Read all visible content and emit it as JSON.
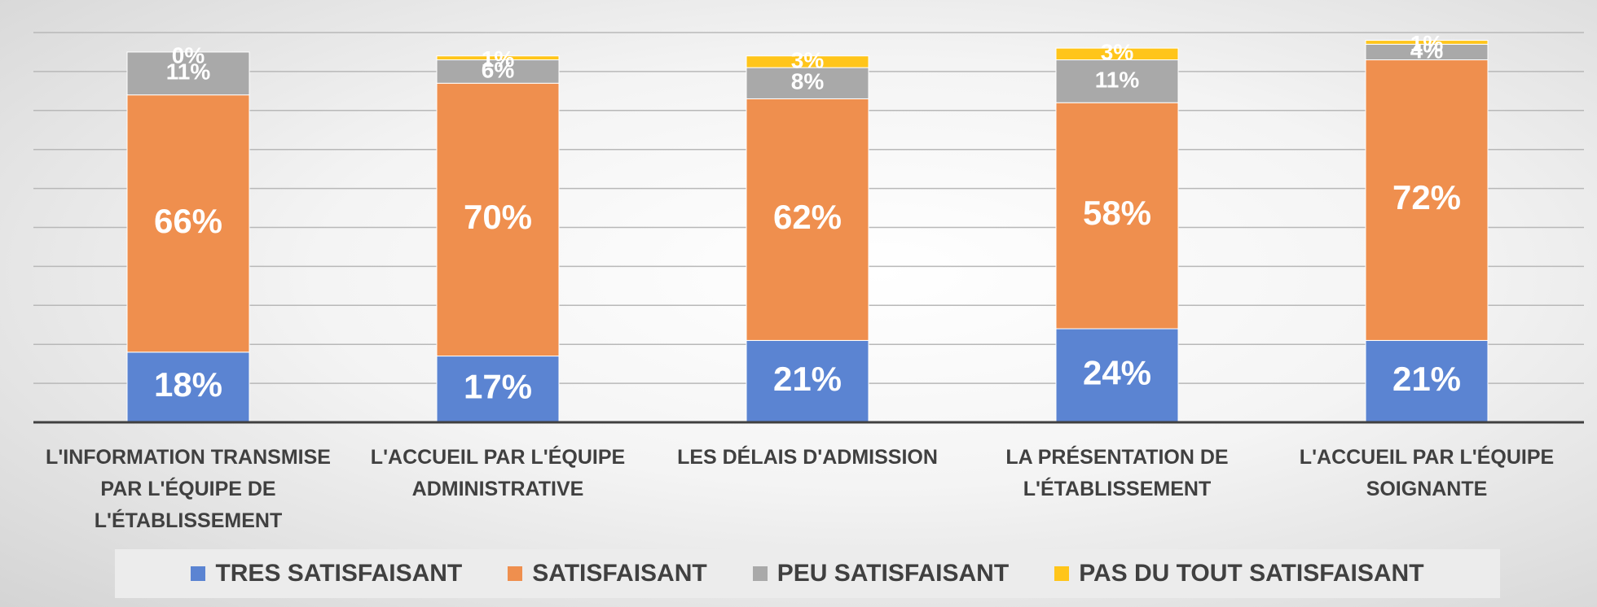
{
  "chart_data": {
    "type": "stacked_bar",
    "categories": [
      "L'INFORMATION TRANSMISE PAR L'ÉQUIPE DE L'ÉTABLISSEMENT",
      "L'ACCUEIL PAR L'ÉQUIPE ADMINISTRATIVE",
      "LES DÉLAIS D'ADMISSION",
      "LA PRÉSENTATION DE L'ÉTABLISSEMENT",
      "L'ACCUEIL PAR L'ÉQUIPE SOIGNANTE"
    ],
    "series": [
      {
        "name": "TRES SATISFAISANT",
        "color": "#5b84d2",
        "values": [
          18,
          17,
          21,
          24,
          21
        ],
        "value_labels": [
          "18%",
          "17%",
          "21%",
          "24%",
          "21%"
        ]
      },
      {
        "name": "SATISFAISANT",
        "color": "#ef8f4e",
        "values": [
          66,
          70,
          62,
          58,
          72
        ],
        "value_labels": [
          "66%",
          "70%",
          "62%",
          "58%",
          "72%"
        ]
      },
      {
        "name": "PEU SATISFAISANT",
        "color": "#a9a9a9",
        "values": [
          11,
          6,
          8,
          11,
          4
        ],
        "value_labels": [
          "11%",
          "6%",
          "8%",
          "11%",
          "4%"
        ]
      },
      {
        "name": "PAS DU TOUT SATISFAISANT",
        "color": "#ffc51a",
        "values": [
          0,
          1,
          3,
          3,
          1
        ],
        "value_labels": [
          "0%",
          "1%",
          "3%",
          "3%",
          "1%"
        ]
      }
    ],
    "ylim": [
      0,
      100
    ],
    "yticks": [
      0,
      10,
      20,
      30,
      40,
      50,
      60,
      70,
      80,
      90,
      100
    ],
    "grid": true,
    "legend": "bottom"
  }
}
